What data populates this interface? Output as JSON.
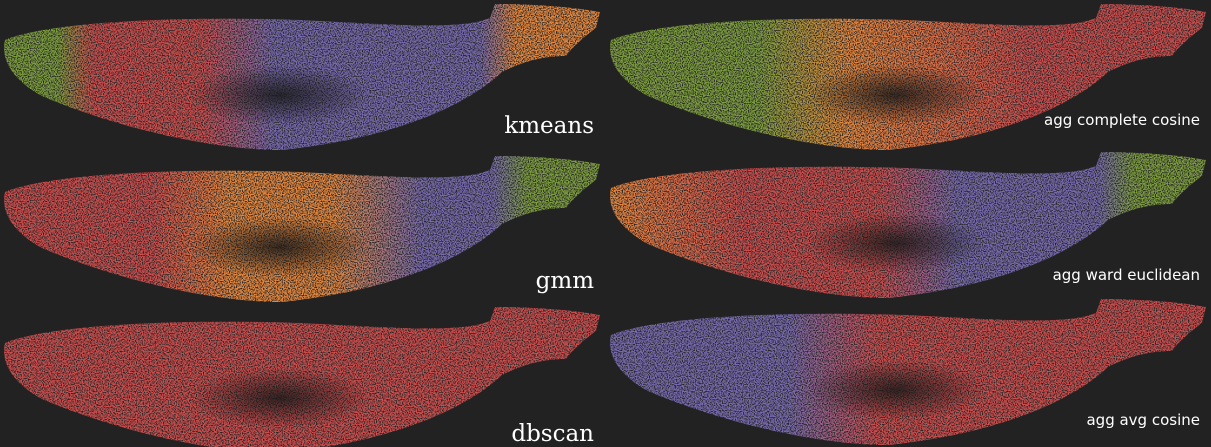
{
  "panels": [
    {
      "label": "kmeans"
    },
    {
      "label": "agg complete cosine"
    },
    {
      "label": "gmm"
    },
    {
      "label": "agg ward euclidean"
    },
    {
      "label": "dbscan"
    },
    {
      "label": "agg avg cosine"
    }
  ]
}
